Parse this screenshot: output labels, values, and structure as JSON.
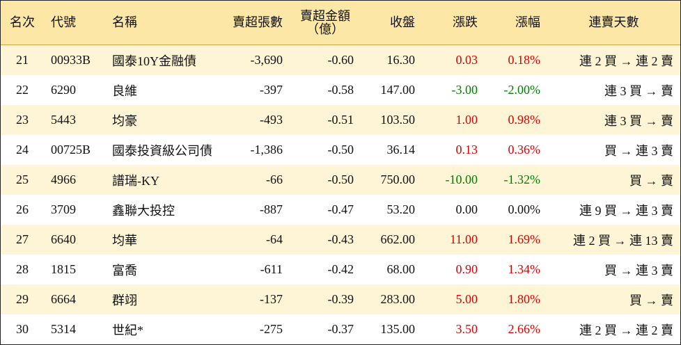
{
  "table": {
    "header": [
      "名次",
      "代號",
      "名稱",
      "賣超張數",
      "賣超金額\n（億）",
      "收盤",
      "漲跌",
      "漲幅",
      "連賣天數"
    ],
    "rows": [
      [
        "21",
        "00933B",
        "國泰10Y金融債",
        "-3,690",
        "-0.60",
        "16.30",
        "0.03",
        "0.18%",
        "連 2 買 → 連 2 賣"
      ],
      [
        "22",
        "6290",
        "良維",
        "-397",
        "-0.58",
        "147.00",
        "-3.00",
        "-2.00%",
        "連 3 買 → 賣"
      ],
      [
        "23",
        "5443",
        "均豪",
        "-493",
        "-0.51",
        "103.50",
        "1.00",
        "0.98%",
        "連 3 買 → 賣"
      ],
      [
        "24",
        "00725B",
        "國泰投資級公司債",
        "-1,386",
        "-0.50",
        "36.14",
        "0.13",
        "0.36%",
        "買 → 連 3 賣"
      ],
      [
        "25",
        "4966",
        "譜瑞-KY",
        "-66",
        "-0.50",
        "750.00",
        "-10.00",
        "-1.32%",
        "買 → 賣"
      ],
      [
        "26",
        "3709",
        "鑫聯大投控",
        "-887",
        "-0.47",
        "53.20",
        "0.00",
        "0.00%",
        "連 9 買 → 連 3 賣"
      ],
      [
        "27",
        "6640",
        "均華",
        "-64",
        "-0.43",
        "662.00",
        "11.00",
        "1.69%",
        "連 2 買 → 連 13 賣"
      ],
      [
        "28",
        "1815",
        "富喬",
        "-611",
        "-0.42",
        "68.00",
        "0.90",
        "1.34%",
        "買 → 連 3 賣"
      ],
      [
        "29",
        "6664",
        "群翊",
        "-137",
        "-0.39",
        "283.00",
        "5.00",
        "1.80%",
        "買 → 賣"
      ],
      [
        "30",
        "5314",
        "世紀*",
        "-275",
        "-0.37",
        "135.00",
        "3.50",
        "2.66%",
        "連 2 買 → 連 2 賣"
      ]
    ]
  }
}
